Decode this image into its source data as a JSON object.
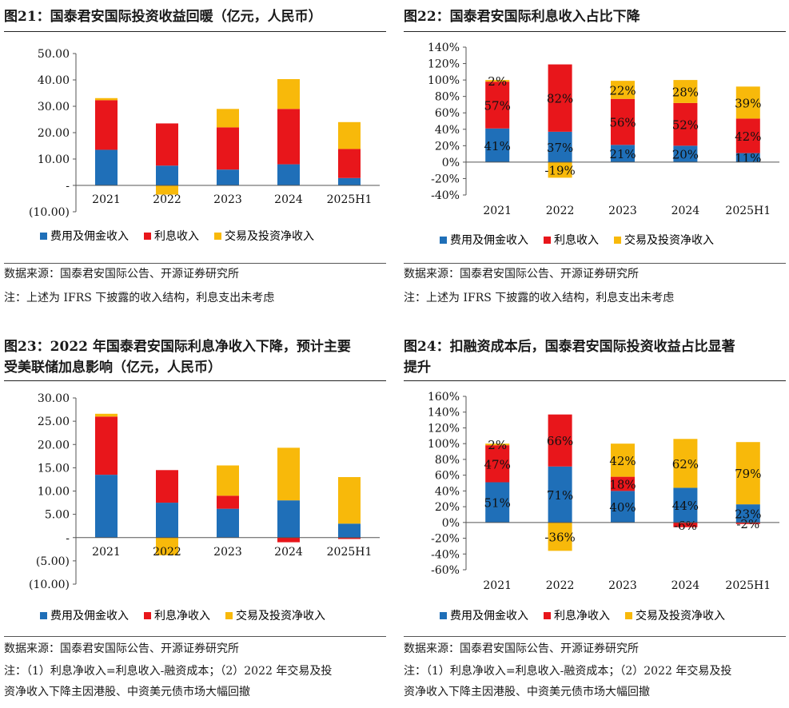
{
  "colors": {
    "blue": "#1f6fb8",
    "red": "#e8161b",
    "yellow": "#f8b90a"
  },
  "source_text": "数据来源：国泰君安国际公告、开源证券研究所",
  "chart_data": [
    {
      "id": "fig21",
      "type": "bar",
      "stacked": true,
      "title": "图21：国泰君安国际投资收益回暖（亿元，人民币）",
      "categories": [
        "2021",
        "2022",
        "2023",
        "2024",
        "2025H1"
      ],
      "ylim": [
        -10,
        50
      ],
      "yticks": [
        50,
        40,
        30,
        20,
        10,
        0,
        -10
      ],
      "ytick_labels": [
        "50.00",
        "40.00",
        "30.00",
        "20.00",
        "10.00",
        "-",
        "(10.00)"
      ],
      "series": [
        {
          "name": "费用及佣金收入",
          "color": "blue",
          "values": [
            13.5,
            7.5,
            6.0,
            8.0,
            2.8
          ]
        },
        {
          "name": "利息收入",
          "color": "red",
          "values": [
            18.8,
            16.0,
            16.0,
            21.0,
            11.0
          ]
        },
        {
          "name": "交易及投资净收入",
          "color": "yellow",
          "values": [
            0.8,
            -3.5,
            7.0,
            11.3,
            10.2
          ]
        }
      ],
      "data_labels": false,
      "notes": [
        "数据来源：国泰君安国际公告、开源证券研究所",
        "注：上述为 IFRS 下披露的收入结构，利息支出未考虑"
      ]
    },
    {
      "id": "fig22",
      "type": "bar",
      "stacked": true,
      "title": "图22：国泰君安国际利息收入占比下降",
      "categories": [
        "2021",
        "2022",
        "2023",
        "2024",
        "2025H1"
      ],
      "ylim": [
        -40,
        140
      ],
      "yticks": [
        140,
        120,
        100,
        80,
        60,
        40,
        20,
        0,
        -20,
        -40
      ],
      "ytick_labels": [
        "140%",
        "120%",
        "100%",
        "80%",
        "60%",
        "40%",
        "20%",
        "0%",
        "-20%",
        "-40%"
      ],
      "series": [
        {
          "name": "费用及佣金收入",
          "color": "blue",
          "values": [
            41,
            37,
            21,
            20,
            11
          ]
        },
        {
          "name": "利息收入",
          "color": "red",
          "values": [
            57,
            82,
            56,
            52,
            42
          ]
        },
        {
          "name": "交易及投资净收入",
          "color": "yellow",
          "values": [
            2,
            -19,
            22,
            28,
            39
          ]
        }
      ],
      "data_labels": true,
      "label_format": "percent",
      "notes": [
        "数据来源：国泰君安国际公告、开源证券研究所",
        "注：上述为 IFRS 下披露的收入结构，利息支出未考虑"
      ]
    },
    {
      "id": "fig23",
      "type": "bar",
      "stacked": true,
      "title": "图23：2022 年国泰君安国际利息净收入下降，预计主要",
      "title_line2": "受美联储加息影响（亿元，人民币）",
      "categories": [
        "2021",
        "2022",
        "2023",
        "2024",
        "2025H1"
      ],
      "ylim": [
        -10,
        30
      ],
      "yticks": [
        30,
        25,
        20,
        15,
        10,
        5,
        0,
        -5,
        -10
      ],
      "ytick_labels": [
        "30.00",
        "25.00",
        "20.00",
        "15.00",
        "10.00",
        "5.00",
        "-",
        "(5.00)",
        "(10.00)"
      ],
      "series": [
        {
          "name": "费用及佣金收入",
          "color": "blue",
          "values": [
            13.5,
            7.5,
            6.2,
            8.0,
            3.0
          ]
        },
        {
          "name": "利息净收入",
          "color": "red",
          "values": [
            12.5,
            7.0,
            2.8,
            -1.0,
            -0.3
          ]
        },
        {
          "name": "交易及投资净收入",
          "color": "yellow",
          "values": [
            0.6,
            -3.8,
            6.5,
            11.3,
            10.0
          ]
        }
      ],
      "data_labels": false,
      "notes": [
        "数据来源：国泰君安国际公告、开源证券研究所",
        "注：（1）利息净收入=利息收入-融资成本；（2）2022 年交易及投",
        "资净收入下降主因港股、中资美元债市场大幅回撤"
      ]
    },
    {
      "id": "fig24",
      "type": "bar",
      "stacked": true,
      "title": "图24：扣融资成本后，国泰君安国际投资收益占比显著",
      "title_line2": "提升",
      "categories": [
        "2021",
        "2022",
        "2023",
        "2024",
        "2025H1"
      ],
      "ylim": [
        -60,
        160
      ],
      "yticks": [
        160,
        140,
        120,
        100,
        80,
        60,
        40,
        20,
        0,
        -20,
        -40,
        -60
      ],
      "ytick_labels": [
        "160%",
        "140%",
        "120%",
        "100%",
        "80%",
        "60%",
        "40%",
        "20%",
        "0%",
        "-20%",
        "-40%",
        "-60%"
      ],
      "series": [
        {
          "name": "费用及佣金收入",
          "color": "blue",
          "values": [
            51,
            71,
            40,
            44,
            23
          ]
        },
        {
          "name": "利息净收入",
          "color": "red",
          "values": [
            47,
            66,
            18,
            -6,
            -2
          ]
        },
        {
          "name": "交易及投资净收入",
          "color": "yellow",
          "values": [
            2,
            -36,
            42,
            62,
            79
          ]
        }
      ],
      "data_labels": true,
      "label_format": "percent",
      "notes": [
        "数据来源：国泰君安国际公告、开源证券研究所",
        "注：（1）利息净收入=利息收入-融资成本；（2）2022 年交易及投",
        "资净收入下降主因港股、中资美元债市场大幅回撤"
      ]
    }
  ]
}
